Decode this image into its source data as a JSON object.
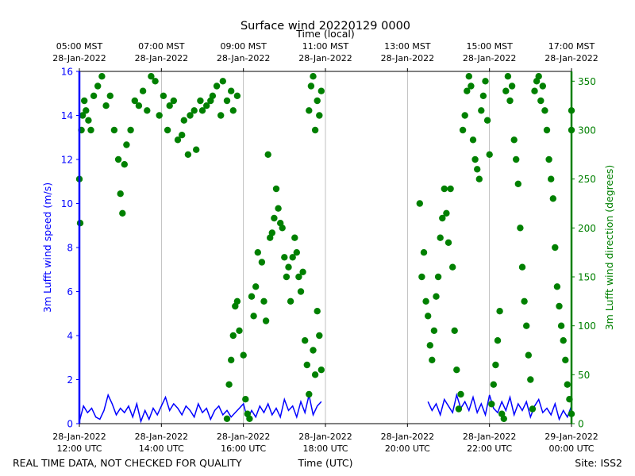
{
  "chart_data": {
    "type": "line+scatter",
    "title": "Surface wind 20220129 0000",
    "top_axis_label": "Time (local)",
    "xlabel": "Time (UTC)",
    "ylabel_left": "3m Lufft wind speed (m/s)",
    "ylabel_right": "3m Lufft wind direction (degrees)",
    "footer_left": "REAL TIME DATA, NOT CHECKED FOR QUALITY",
    "footer_right": "Site: ISS2",
    "xlim_hours_utc": [
      12,
      24
    ],
    "ylim_left": [
      0,
      16
    ],
    "ylim_right": [
      0,
      360
    ],
    "bottom_ticks": [
      {
        "hour": 12,
        "line1": "28-Jan-2022",
        "line2": "12:00 UTC"
      },
      {
        "hour": 14,
        "line1": "28-Jan-2022",
        "line2": "14:00 UTC"
      },
      {
        "hour": 16,
        "line1": "28-Jan-2022",
        "line2": "16:00 UTC"
      },
      {
        "hour": 18,
        "line1": "28-Jan-2022",
        "line2": "18:00 UTC"
      },
      {
        "hour": 20,
        "line1": "28-Jan-2022",
        "line2": "20:00 UTC"
      },
      {
        "hour": 22,
        "line1": "28-Jan-2022",
        "line2": "22:00 UTC"
      },
      {
        "hour": 24,
        "line1": "29-Jan-2022",
        "line2": "00:00 UTC"
      }
    ],
    "top_ticks": [
      {
        "hour": 12,
        "line1": "05:00 MST",
        "line2": "28-Jan-2022"
      },
      {
        "hour": 14,
        "line1": "07:00 MST",
        "line2": "28-Jan-2022"
      },
      {
        "hour": 16,
        "line1": "09:00 MST",
        "line2": "28-Jan-2022"
      },
      {
        "hour": 18,
        "line1": "11:00 MST",
        "line2": "28-Jan-2022"
      },
      {
        "hour": 20,
        "line1": "13:00 MST",
        "line2": "28-Jan-2022"
      },
      {
        "hour": 22,
        "line1": "15:00 MST",
        "line2": "28-Jan-2022"
      },
      {
        "hour": 24,
        "line1": "17:00 MST",
        "line2": "28-Jan-2022"
      }
    ],
    "left_ticks": [
      0,
      2,
      4,
      6,
      8,
      10,
      12,
      14,
      16
    ],
    "right_ticks": [
      0,
      50,
      100,
      150,
      200,
      250,
      300,
      350
    ],
    "vertical_gridlines_hours": [
      14,
      16,
      18,
      20,
      22
    ],
    "colors": {
      "speed": "#0000ff",
      "direction": "#008000",
      "grid": "#b0b0b0",
      "text": "#000000"
    },
    "series": [
      {
        "name": "3m Lufft wind speed (m/s)",
        "axis": "left",
        "style": "line",
        "segments": [
          {
            "x": [
              12.0,
              12.1,
              12.2,
              12.3,
              12.4,
              12.5,
              12.6,
              12.7,
              12.8,
              12.9,
              13.0,
              13.1,
              13.2,
              13.3,
              13.4,
              13.5,
              13.6,
              13.7,
              13.8,
              13.9,
              14.0,
              14.1,
              14.2,
              14.3,
              14.4,
              14.5,
              14.6,
              14.7,
              14.8,
              14.9,
              15.0,
              15.1,
              15.2,
              15.3,
              15.4,
              15.5,
              15.6,
              15.7,
              15.8,
              15.9,
              16.0,
              16.1,
              16.2,
              16.3,
              16.4,
              16.5,
              16.6,
              16.7,
              16.8,
              16.9,
              17.0,
              17.1,
              17.2,
              17.3,
              17.4,
              17.5,
              17.6,
              17.7,
              17.8,
              17.9
            ],
            "y": [
              0.1,
              0.8,
              0.5,
              0.7,
              0.3,
              0.2,
              0.6,
              1.3,
              0.9,
              0.4,
              0.7,
              0.5,
              0.8,
              0.3,
              0.9,
              0.1,
              0.6,
              0.2,
              0.7,
              0.4,
              0.8,
              1.2,
              0.6,
              0.9,
              0.7,
              0.4,
              0.8,
              0.6,
              0.3,
              0.9,
              0.5,
              0.7,
              0.2,
              0.6,
              0.8,
              0.4,
              0.6,
              0.3,
              0.5,
              0.7,
              0.9,
              0.2,
              0.6,
              0.3,
              0.8,
              0.5,
              0.9,
              0.4,
              0.7,
              0.3,
              1.1,
              0.6,
              0.8,
              0.3,
              1.0,
              0.5,
              1.3,
              0.4,
              0.8,
              1.0
            ]
          },
          {
            "x": [
              20.5,
              20.6,
              20.7,
              20.8,
              20.9,
              21.0,
              21.1,
              21.2,
              21.3,
              21.4,
              21.5,
              21.6,
              21.7,
              21.8,
              21.9,
              22.0,
              22.1,
              22.2,
              22.3,
              22.4,
              22.5,
              22.6,
              22.7,
              22.8,
              22.9,
              23.0,
              23.1,
              23.2,
              23.3,
              23.4,
              23.5,
              23.6,
              23.7,
              23.8,
              23.9,
              24.0
            ],
            "y": [
              1.0,
              0.6,
              0.9,
              0.4,
              1.1,
              0.8,
              0.5,
              1.3,
              0.7,
              1.0,
              0.6,
              1.2,
              0.5,
              0.9,
              0.4,
              1.3,
              0.7,
              0.5,
              1.0,
              0.6,
              1.2,
              0.4,
              0.9,
              0.6,
              1.0,
              0.3,
              0.8,
              1.1,
              0.5,
              0.7,
              0.4,
              0.9,
              0.2,
              0.6,
              0.3,
              0.8
            ]
          }
        ]
      },
      {
        "name": "3m Lufft wind direction (degrees)",
        "axis": "right",
        "style": "scatter",
        "points": [
          [
            12.0,
            250
          ],
          [
            12.02,
            205
          ],
          [
            12.05,
            300
          ],
          [
            12.08,
            315
          ],
          [
            12.12,
            330
          ],
          [
            12.16,
            320
          ],
          [
            12.22,
            310
          ],
          [
            12.28,
            300
          ],
          [
            12.35,
            335
          ],
          [
            12.45,
            345
          ],
          [
            12.55,
            355
          ],
          [
            12.65,
            325
          ],
          [
            12.75,
            335
          ],
          [
            12.85,
            300
          ],
          [
            12.95,
            270
          ],
          [
            13.0,
            235
          ],
          [
            13.05,
            215
          ],
          [
            13.1,
            265
          ],
          [
            13.15,
            285
          ],
          [
            13.25,
            300
          ],
          [
            13.35,
            330
          ],
          [
            13.45,
            325
          ],
          [
            13.55,
            340
          ],
          [
            13.65,
            320
          ],
          [
            13.75,
            355
          ],
          [
            13.85,
            350
          ],
          [
            13.95,
            315
          ],
          [
            14.05,
            335
          ],
          [
            14.15,
            300
          ],
          [
            14.2,
            325
          ],
          [
            14.3,
            330
          ],
          [
            14.4,
            290
          ],
          [
            14.5,
            295
          ],
          [
            14.55,
            310
          ],
          [
            14.65,
            275
          ],
          [
            14.7,
            315
          ],
          [
            14.8,
            320
          ],
          [
            14.85,
            280
          ],
          [
            14.95,
            330
          ],
          [
            15.0,
            320
          ],
          [
            15.1,
            325
          ],
          [
            15.2,
            330
          ],
          [
            15.25,
            335
          ],
          [
            15.35,
            345
          ],
          [
            15.45,
            315
          ],
          [
            15.5,
            350
          ],
          [
            15.6,
            330
          ],
          [
            15.7,
            340
          ],
          [
            15.75,
            320
          ],
          [
            15.85,
            335
          ],
          [
            15.6,
            5
          ],
          [
            15.65,
            40
          ],
          [
            15.7,
            65
          ],
          [
            15.75,
            90
          ],
          [
            15.8,
            120
          ],
          [
            15.85,
            125
          ],
          [
            15.9,
            95
          ],
          [
            16.0,
            70
          ],
          [
            16.05,
            25
          ],
          [
            16.1,
            10
          ],
          [
            16.15,
            5
          ],
          [
            16.2,
            130
          ],
          [
            16.25,
            110
          ],
          [
            16.3,
            140
          ],
          [
            16.35,
            175
          ],
          [
            16.45,
            165
          ],
          [
            16.5,
            125
          ],
          [
            16.55,
            105
          ],
          [
            16.6,
            275
          ],
          [
            16.65,
            190
          ],
          [
            16.7,
            195
          ],
          [
            16.75,
            210
          ],
          [
            16.8,
            240
          ],
          [
            16.85,
            220
          ],
          [
            16.9,
            205
          ],
          [
            16.95,
            200
          ],
          [
            17.0,
            170
          ],
          [
            17.05,
            150
          ],
          [
            17.1,
            160
          ],
          [
            17.15,
            125
          ],
          [
            17.2,
            170
          ],
          [
            17.25,
            190
          ],
          [
            17.3,
            175
          ],
          [
            17.35,
            150
          ],
          [
            17.4,
            135
          ],
          [
            17.45,
            155
          ],
          [
            17.5,
            85
          ],
          [
            17.55,
            60
          ],
          [
            17.6,
            30
          ],
          [
            17.7,
            75
          ],
          [
            17.75,
            50
          ],
          [
            17.8,
            115
          ],
          [
            17.85,
            90
          ],
          [
            17.9,
            55
          ],
          [
            17.6,
            320
          ],
          [
            17.65,
            345
          ],
          [
            17.7,
            355
          ],
          [
            17.75,
            300
          ],
          [
            17.8,
            330
          ],
          [
            17.85,
            315
          ],
          [
            17.9,
            340
          ],
          [
            20.3,
            225
          ],
          [
            20.35,
            150
          ],
          [
            20.4,
            175
          ],
          [
            20.45,
            125
          ],
          [
            20.5,
            110
          ],
          [
            20.55,
            80
          ],
          [
            20.6,
            65
          ],
          [
            20.65,
            95
          ],
          [
            20.7,
            130
          ],
          [
            20.75,
            150
          ],
          [
            20.8,
            190
          ],
          [
            20.85,
            210
          ],
          [
            20.9,
            240
          ],
          [
            20.95,
            215
          ],
          [
            21.0,
            185
          ],
          [
            21.05,
            240
          ],
          [
            21.1,
            160
          ],
          [
            21.15,
            95
          ],
          [
            21.2,
            55
          ],
          [
            21.25,
            15
          ],
          [
            21.3,
            30
          ],
          [
            21.35,
            300
          ],
          [
            21.4,
            315
          ],
          [
            21.45,
            340
          ],
          [
            21.5,
            355
          ],
          [
            21.55,
            345
          ],
          [
            21.6,
            290
          ],
          [
            21.65,
            270
          ],
          [
            21.7,
            260
          ],
          [
            21.75,
            250
          ],
          [
            21.8,
            320
          ],
          [
            21.85,
            335
          ],
          [
            21.9,
            350
          ],
          [
            21.95,
            310
          ],
          [
            22.0,
            275
          ],
          [
            22.05,
            20
          ],
          [
            22.1,
            40
          ],
          [
            22.15,
            60
          ],
          [
            22.2,
            85
          ],
          [
            22.25,
            115
          ],
          [
            22.3,
            10
          ],
          [
            22.35,
            5
          ],
          [
            22.4,
            340
          ],
          [
            22.45,
            355
          ],
          [
            22.5,
            330
          ],
          [
            22.55,
            345
          ],
          [
            22.6,
            290
          ],
          [
            22.65,
            270
          ],
          [
            22.7,
            245
          ],
          [
            22.75,
            200
          ],
          [
            22.8,
            160
          ],
          [
            22.85,
            125
          ],
          [
            22.9,
            100
          ],
          [
            22.95,
            70
          ],
          [
            23.0,
            45
          ],
          [
            23.05,
            15
          ],
          [
            23.1,
            340
          ],
          [
            23.15,
            350
          ],
          [
            23.2,
            355
          ],
          [
            23.25,
            330
          ],
          [
            23.3,
            345
          ],
          [
            23.35,
            320
          ],
          [
            23.4,
            300
          ],
          [
            23.45,
            270
          ],
          [
            23.5,
            250
          ],
          [
            23.55,
            230
          ],
          [
            23.6,
            180
          ],
          [
            23.65,
            140
          ],
          [
            23.7,
            120
          ],
          [
            23.75,
            100
          ],
          [
            23.8,
            85
          ],
          [
            23.85,
            65
          ],
          [
            23.9,
            40
          ],
          [
            23.95,
            25
          ],
          [
            24.0,
            10
          ],
          [
            24.0,
            300
          ],
          [
            24.0,
            320
          ]
        ]
      }
    ]
  }
}
